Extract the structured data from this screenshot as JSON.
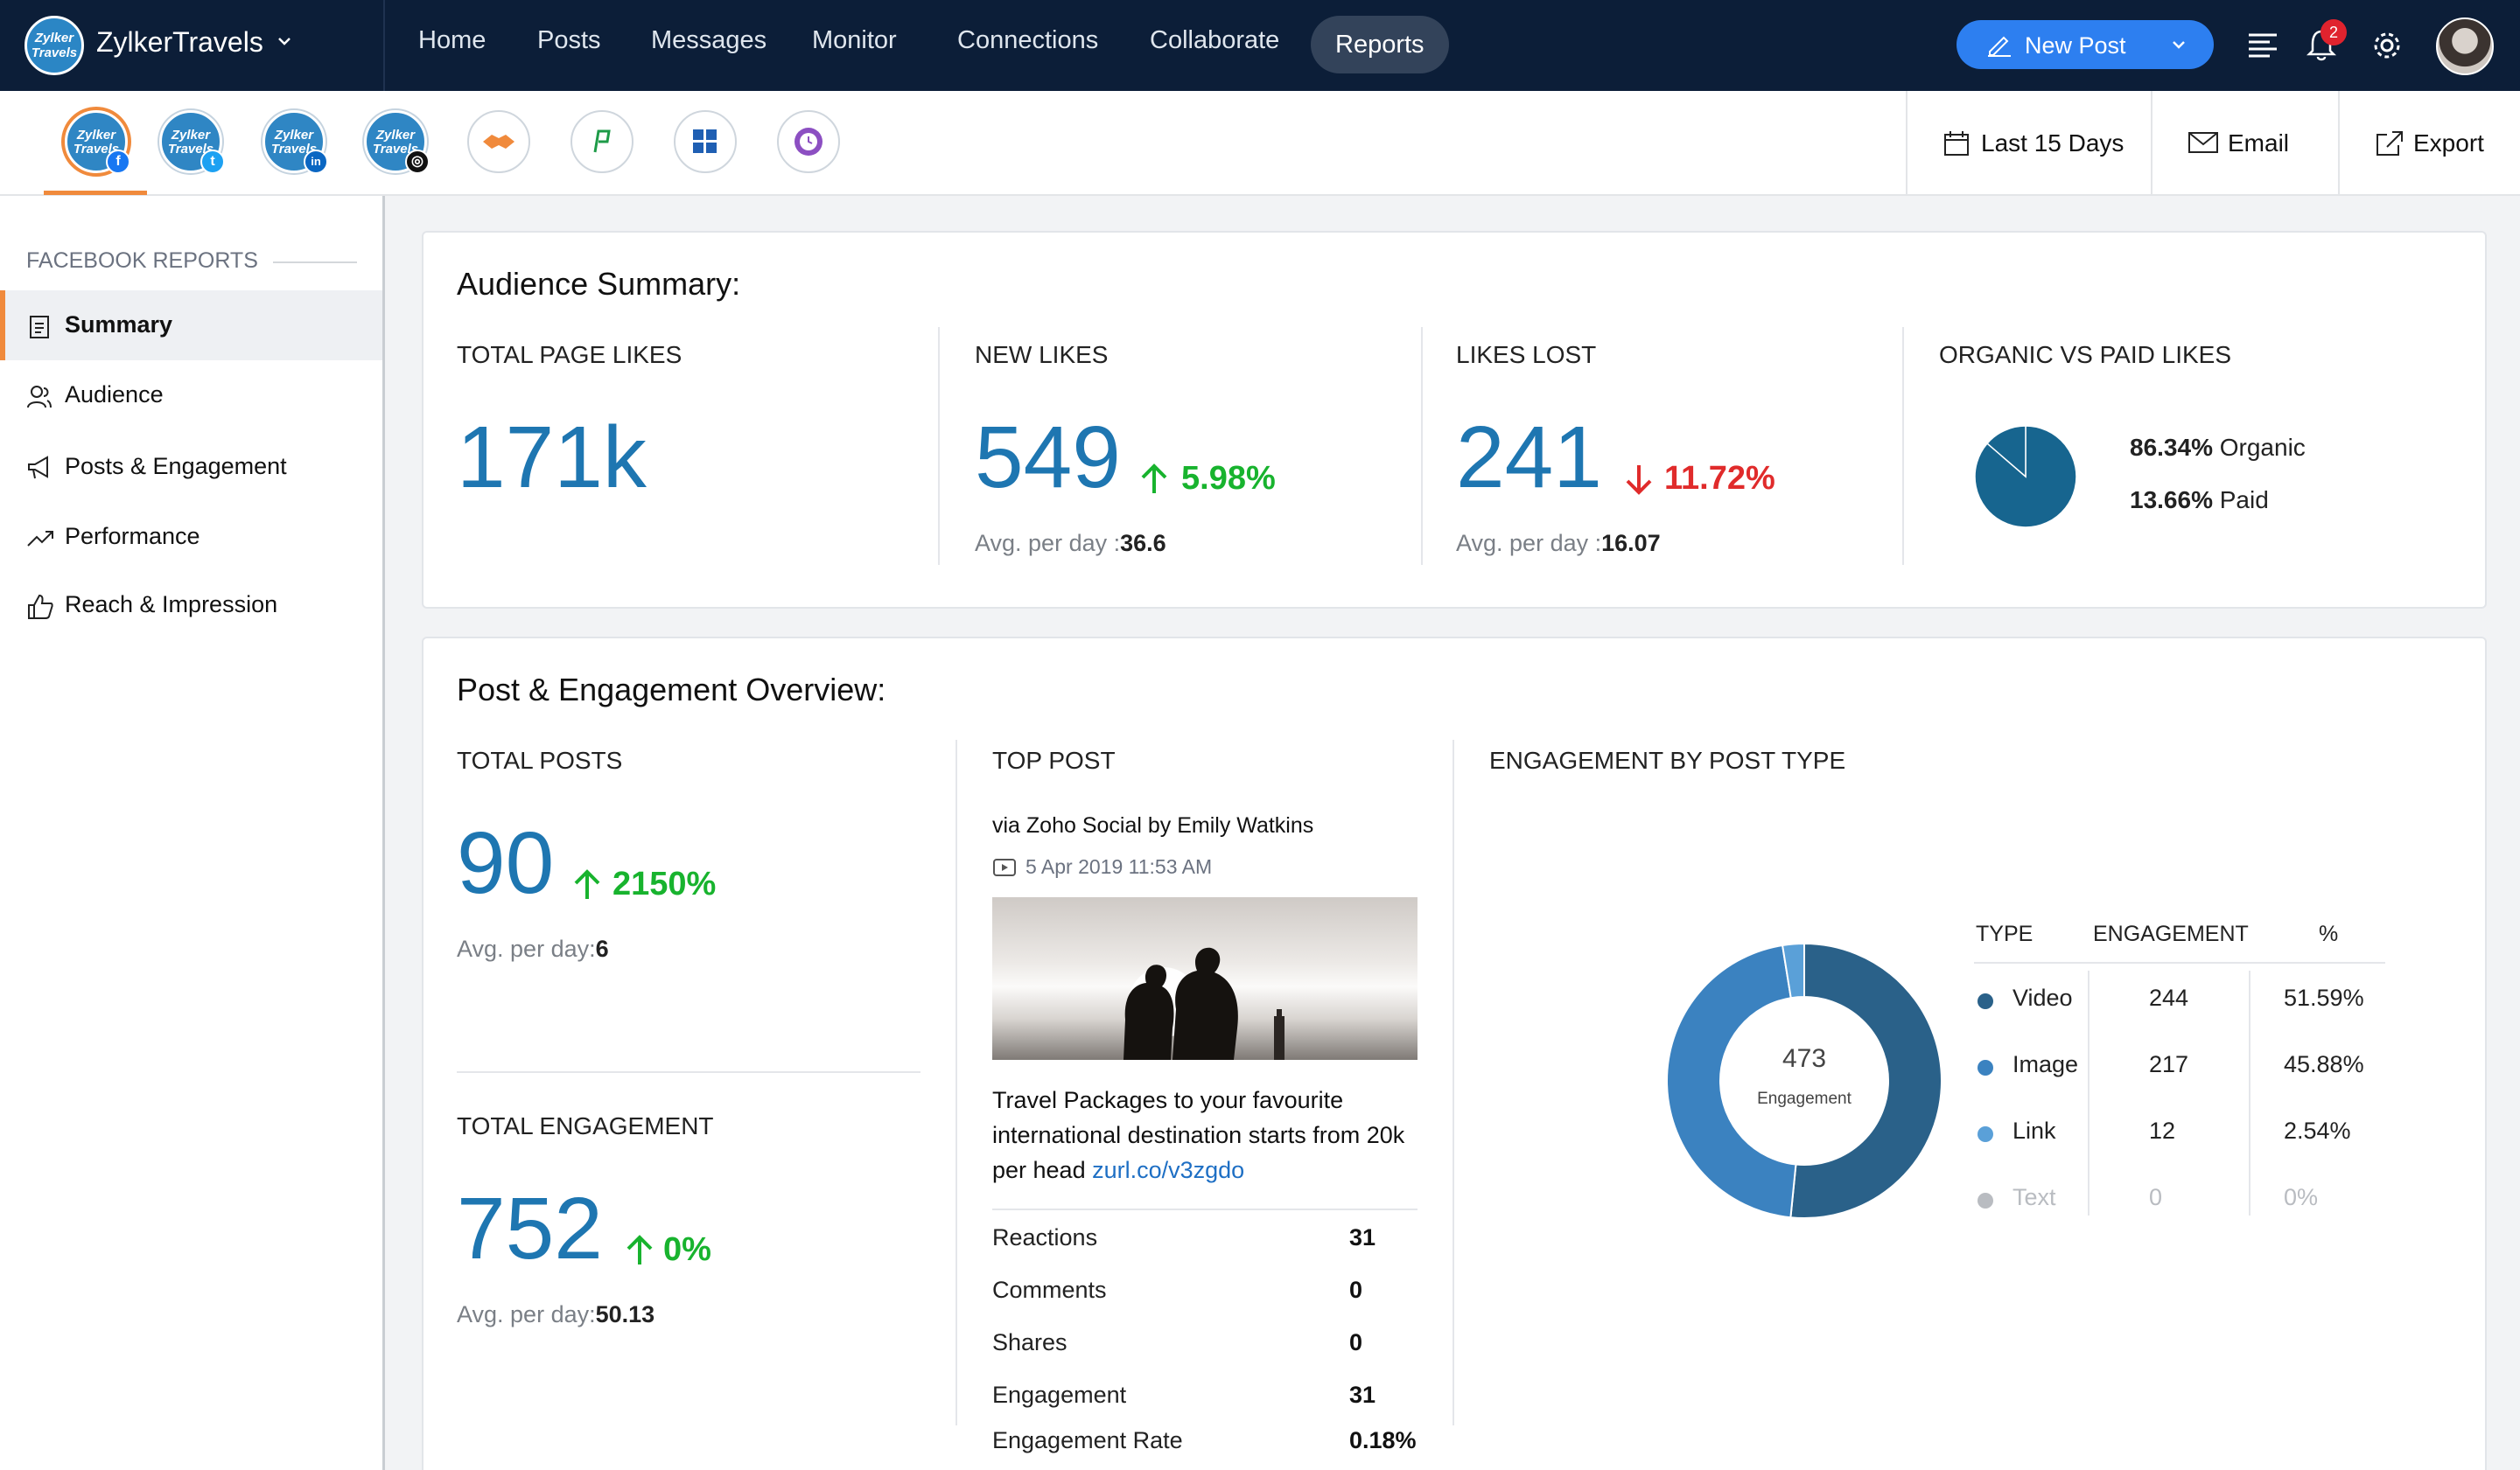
{
  "nav": {
    "brand": "ZylkerTravels",
    "brand_logo_text": "Zylker Travels",
    "menu": [
      "Home",
      "Posts",
      "Messages",
      "Monitor",
      "Connections",
      "Collaborate",
      "Reports"
    ],
    "active_menu": "Reports",
    "new_post": "New Post",
    "notification_count": "2"
  },
  "toolbar": {
    "profile_logo_text": "Zylker Travels",
    "channels": [
      {
        "name": "Facebook",
        "badge": "f",
        "color": "#1877f2"
      },
      {
        "name": "Twitter",
        "badge": "t",
        "color": "#1da1f2"
      },
      {
        "name": "LinkedIn",
        "badge": "in",
        "color": "#0a66c2"
      },
      {
        "name": "Instagram",
        "badge": "◎",
        "color": "#111111"
      }
    ],
    "date_range": "Last 15 Days",
    "email": "Email",
    "export": "Export"
  },
  "sidebar": {
    "title": "FACEBOOK REPORTS",
    "items": [
      "Summary",
      "Audience",
      "Posts & Engagement",
      "Performance",
      "Reach & Impression"
    ],
    "active": "Summary"
  },
  "audience": {
    "title": "Audience Summary:",
    "total_likes_label": "TOTAL PAGE LIKES",
    "total_likes": "171k",
    "new_likes_label": "NEW LIKES",
    "new_likes": "549",
    "new_likes_change": "5.98%",
    "new_likes_avg_label": "Avg. per day :",
    "new_likes_avg": "36.6",
    "likes_lost_label": "LIKES LOST",
    "likes_lost": "241",
    "likes_lost_change": "11.72%",
    "likes_lost_avg_label": "Avg. per day :",
    "likes_lost_avg": "16.07",
    "organic_paid_label": "ORGANIC VS PAID LIKES",
    "organic_pct": "86.34%",
    "organic_label": "Organic",
    "paid_pct": "13.66%",
    "paid_label": "Paid",
    "organic_value": 86.34,
    "paid_value": 13.66,
    "pie_color": "#17658f"
  },
  "engagement": {
    "title": "Post & Engagement Overview:",
    "total_posts_label": "TOTAL POSTS",
    "total_posts": "90",
    "total_posts_change": "2150%",
    "total_posts_avg_label": "Avg. per day:",
    "total_posts_avg": "6",
    "total_engagement_label": "TOTAL ENGAGEMENT",
    "total_engagement": "752",
    "total_engagement_change": "0%",
    "total_engagement_avg_label": "Avg. per day:",
    "total_engagement_avg": "50.13",
    "top_post_label": "TOP POST",
    "top_post_by": "via Zoho Social by Emily Watkins",
    "top_post_date": "5 Apr 2019 11:53 AM",
    "top_post_text": "Travel Packages to your favourite international destination starts from 20k per head",
    "top_post_link": "zurl.co/v3zgdo",
    "top_post_stats": [
      {
        "label": "Reactions",
        "value": "31"
      },
      {
        "label": "Comments",
        "value": "0"
      },
      {
        "label": "Shares",
        "value": "0"
      },
      {
        "label": "Engagement",
        "value": "31"
      },
      {
        "label": "Engagement Rate",
        "value": "0.18%"
      }
    ],
    "by_type_label": "ENGAGEMENT BY POST TYPE",
    "donut_total": "473",
    "donut_caption": "Engagement",
    "table_headers": [
      "TYPE",
      "ENGAGEMENT",
      "%"
    ],
    "types": [
      {
        "type": "Video",
        "engagement": "244",
        "percent": "51.59%",
        "color": "#2a6189"
      },
      {
        "type": "Image",
        "engagement": "217",
        "percent": "45.88%",
        "color": "#3b82c0"
      },
      {
        "type": "Link",
        "engagement": "12",
        "percent": "2.54%",
        "color": "#5aa0d8"
      },
      {
        "type": "Text",
        "engagement": "0",
        "percent": "0%",
        "color": "#b9bcc1"
      }
    ]
  },
  "chart_data": [
    {
      "type": "pie",
      "categories": [
        "Organic",
        "Paid"
      ],
      "values": [
        86.34,
        13.66
      ]
    },
    {
      "type": "pie",
      "categories": [
        "Video",
        "Image",
        "Link",
        "Text"
      ],
      "values": [
        244,
        217,
        12,
        0
      ]
    }
  ]
}
